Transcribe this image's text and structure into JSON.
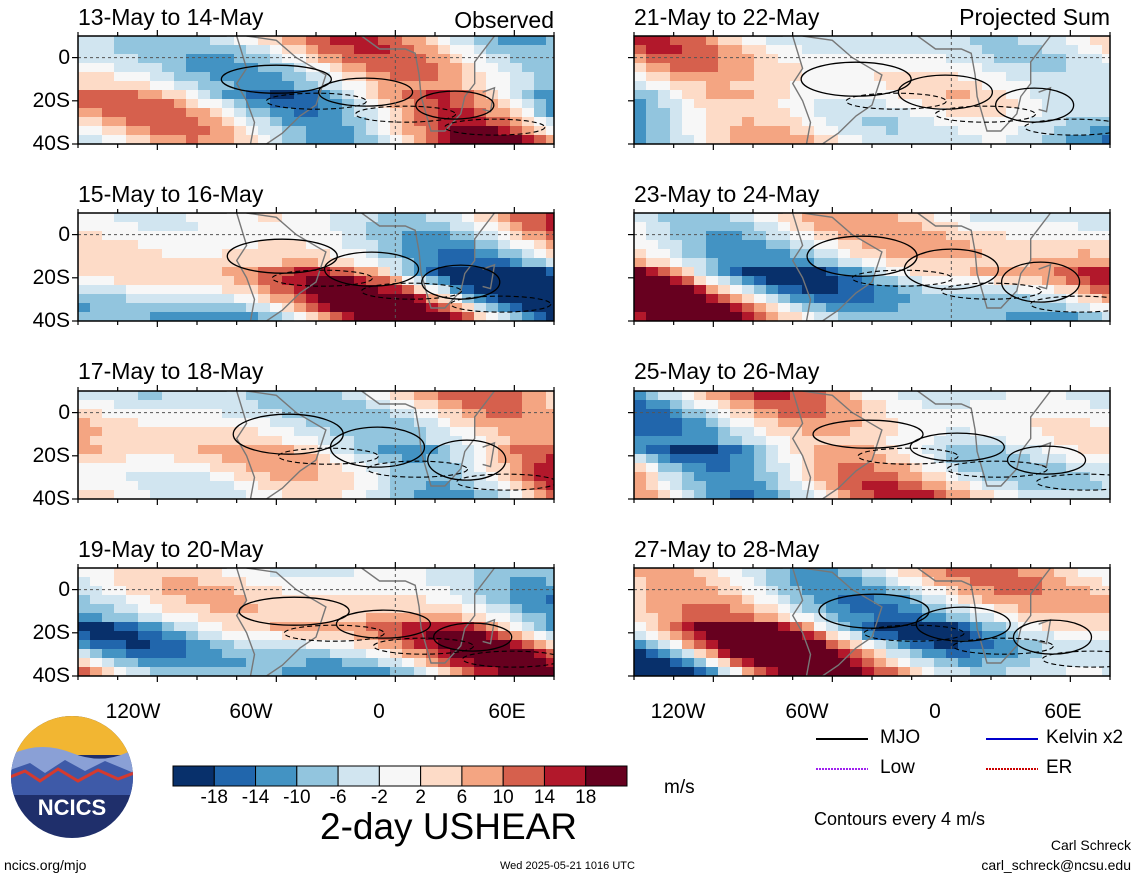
{
  "chart_data": {
    "type": "heatmap",
    "title": "2-day USHEAR",
    "units": "m/s",
    "contour_note": "Contours every 4 m/s",
    "columns": [
      {
        "header": "Observed"
      },
      {
        "header": "Projected Sum"
      }
    ],
    "y_ticks": [
      "0",
      "20S",
      "40S"
    ],
    "x_ticks": [
      "120W",
      "60W",
      "0",
      "60E"
    ],
    "x_range": [
      -160,
      80
    ],
    "y_range": [
      -40,
      10
    ],
    "panels": [
      {
        "label": "13-May to 14-May",
        "column": 0,
        "row": 0
      },
      {
        "label": "15-May to 16-May",
        "column": 0,
        "row": 1
      },
      {
        "label": "17-May to 18-May",
        "column": 0,
        "row": 2
      },
      {
        "label": "19-May to 20-May",
        "column": 0,
        "row": 3
      },
      {
        "label": "21-May to 22-May",
        "column": 1,
        "row": 0
      },
      {
        "label": "23-May to 24-May",
        "column": 1,
        "row": 1
      },
      {
        "label": "25-May to 26-May",
        "column": 1,
        "row": 2
      },
      {
        "label": "27-May to 28-May",
        "column": 1,
        "row": 3
      }
    ],
    "colorbar": {
      "ticks": [
        "-18",
        "-14",
        "-10",
        "-6",
        "-2",
        "2",
        "6",
        "10",
        "14",
        "18"
      ],
      "colors": [
        "#08306b",
        "#2166ac",
        "#4393c3",
        "#92c5de",
        "#d1e5f0",
        "#f7f7f7",
        "#fddbc7",
        "#f4a582",
        "#d6604d",
        "#b2182b",
        "#67001f"
      ]
    },
    "legend": [
      {
        "label": "MJO",
        "color": "#000000"
      },
      {
        "label": "Kelvin x2",
        "color": "#0000cc"
      },
      {
        "label": "Low",
        "color": "#a020f0"
      },
      {
        "label": "ER",
        "color": "#cc0000"
      }
    ]
  },
  "branding": {
    "logo_text": "NCICS",
    "site": "ncics.org/mjo",
    "timestamp": "Wed 2025-05-21 1016 UTC",
    "author": "Carl Schreck",
    "email": "carl_schreck@ncsu.edu"
  }
}
